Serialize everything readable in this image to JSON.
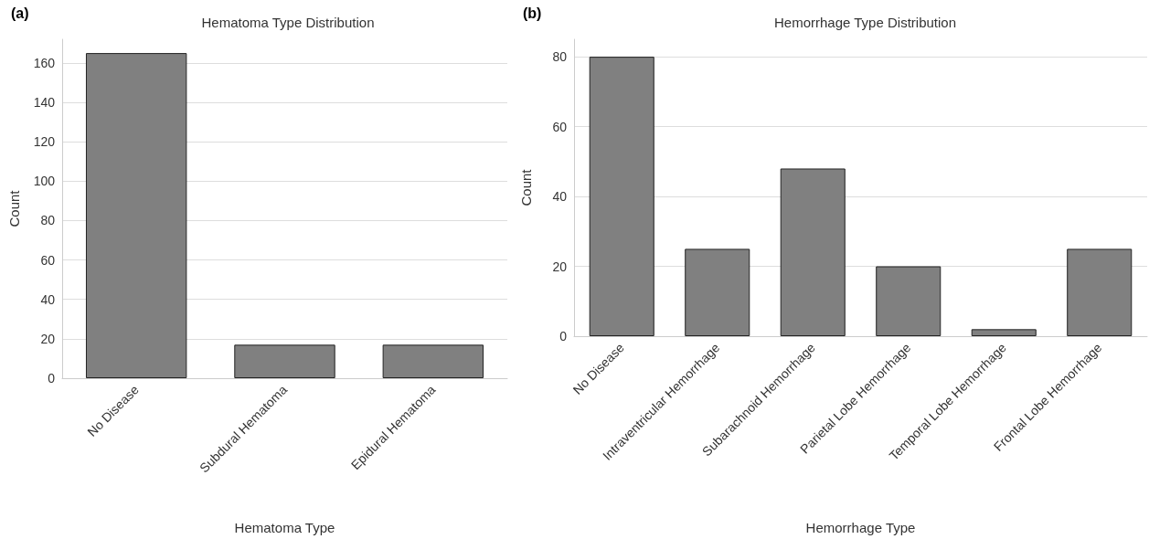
{
  "chart_data": [
    {
      "type": "bar",
      "title": "Hematoma Type Distribution",
      "xlabel": "Hematoma Type",
      "ylabel": "Count",
      "annotations": [
        "(a)"
      ],
      "categories": [
        "No Disease",
        "Subdural Hematoma",
        "Epidural Hematoma"
      ],
      "values": [
        165,
        17,
        17
      ],
      "color": "#808080",
      "ylim": [
        0,
        172
      ],
      "yticks": [
        0,
        20,
        40,
        60,
        80,
        100,
        120,
        140,
        160
      ],
      "grid": "y"
    },
    {
      "type": "bar",
      "title": "Hemorrhage Type Distribution",
      "xlabel": "Hemorrhage Type",
      "ylabel": "Count",
      "annotations": [
        "(b)"
      ],
      "categories": [
        "No Disease",
        "Intraventricular Hemorrhage",
        "Subarachnoid Hemorrhage",
        "Parietal Lobe Hemorrhage",
        "Temporal Lobe Hemorrhage",
        "Frontal Lobe Hemorrhage"
      ],
      "values": [
        80,
        25,
        48,
        20,
        2,
        25
      ],
      "color": "#808080",
      "ylim": [
        0,
        85
      ],
      "yticks": [
        0,
        20,
        40,
        60,
        80
      ],
      "grid": "y"
    }
  ]
}
